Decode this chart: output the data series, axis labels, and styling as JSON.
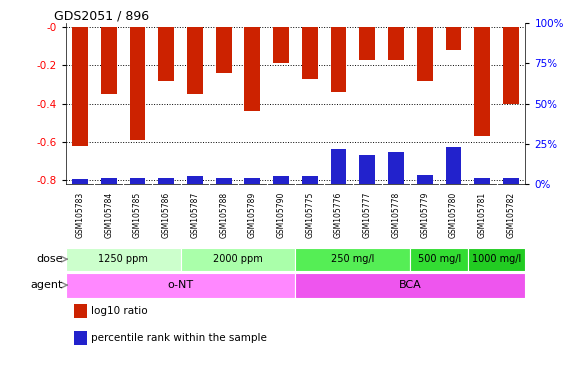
{
  "title": "GDS2051 / 896",
  "samples": [
    "GSM105783",
    "GSM105784",
    "GSM105785",
    "GSM105786",
    "GSM105787",
    "GSM105788",
    "GSM105789",
    "GSM105790",
    "GSM105775",
    "GSM105776",
    "GSM105777",
    "GSM105778",
    "GSM105779",
    "GSM105780",
    "GSM105781",
    "GSM105782"
  ],
  "log10_ratio": [
    -0.62,
    -0.35,
    -0.59,
    -0.28,
    -0.35,
    -0.24,
    -0.44,
    -0.19,
    -0.27,
    -0.34,
    -0.17,
    -0.17,
    -0.28,
    -0.12,
    -0.57,
    -0.4
  ],
  "pct_rank": [
    3,
    4,
    4,
    4,
    5,
    4,
    4,
    5,
    5,
    22,
    18,
    20,
    6,
    23,
    4,
    4
  ],
  "bar_color": "#cc2200",
  "pct_color": "#2222cc",
  "ylim_left": [
    -0.82,
    0.02
  ],
  "left_ticks": [
    -0.8,
    -0.6,
    -0.4,
    -0.2,
    0.0
  ],
  "left_tick_labels": [
    "-0.8",
    "-0.6",
    "-0.4",
    "-0.2",
    "-0"
  ],
  "right_ticks": [
    0,
    25,
    50,
    75,
    100
  ],
  "right_tick_labels": [
    "0%",
    "25%",
    "50%",
    "75%",
    "100%"
  ],
  "dose_groups": [
    {
      "label": "1250 ppm",
      "start": 0,
      "end": 4,
      "color": "#ccffcc"
    },
    {
      "label": "2000 ppm",
      "start": 4,
      "end": 8,
      "color": "#aaffaa"
    },
    {
      "label": "250 mg/l",
      "start": 8,
      "end": 12,
      "color": "#55ee55"
    },
    {
      "label": "500 mg/l",
      "start": 12,
      "end": 14,
      "color": "#33dd33"
    },
    {
      "label": "1000 mg/l",
      "start": 14,
      "end": 16,
      "color": "#22cc22"
    }
  ],
  "agent_groups": [
    {
      "label": "o-NT",
      "start": 0,
      "end": 8,
      "color": "#ff88ff"
    },
    {
      "label": "BCA",
      "start": 8,
      "end": 16,
      "color": "#ee55ee"
    }
  ],
  "legend_items": [
    {
      "color": "#cc2200",
      "label": "log10 ratio"
    },
    {
      "color": "#2222cc",
      "label": "percentile rank within the sample"
    }
  ]
}
